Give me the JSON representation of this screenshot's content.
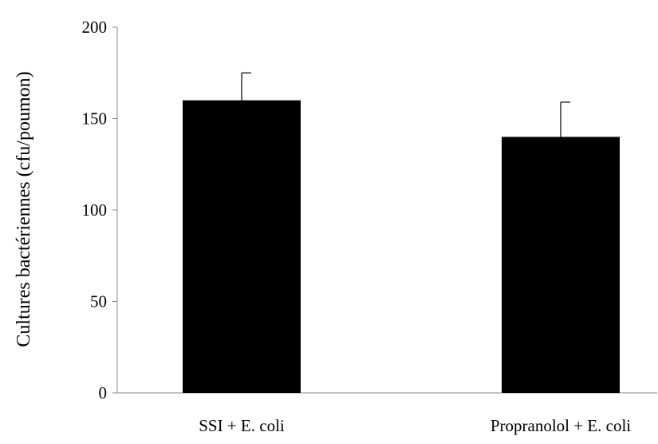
{
  "chart_data": {
    "type": "bar",
    "title": "",
    "xlabel": "",
    "ylabel": "Cultures bactériennes (cfu/poumon)",
    "categories": [
      "SSI + E. coli",
      "Propranolol + E. coli"
    ],
    "values": [
      160,
      140
    ],
    "error_upper": [
      175,
      159
    ],
    "ylim": [
      0,
      200
    ],
    "yticks": [
      0,
      50,
      100,
      150,
      200
    ],
    "ytick_labels": [
      "0",
      "50",
      "100",
      "150",
      "200"
    ],
    "grid": false,
    "legend": "none",
    "bar_color": "#000000",
    "axis_color": "#888888"
  }
}
